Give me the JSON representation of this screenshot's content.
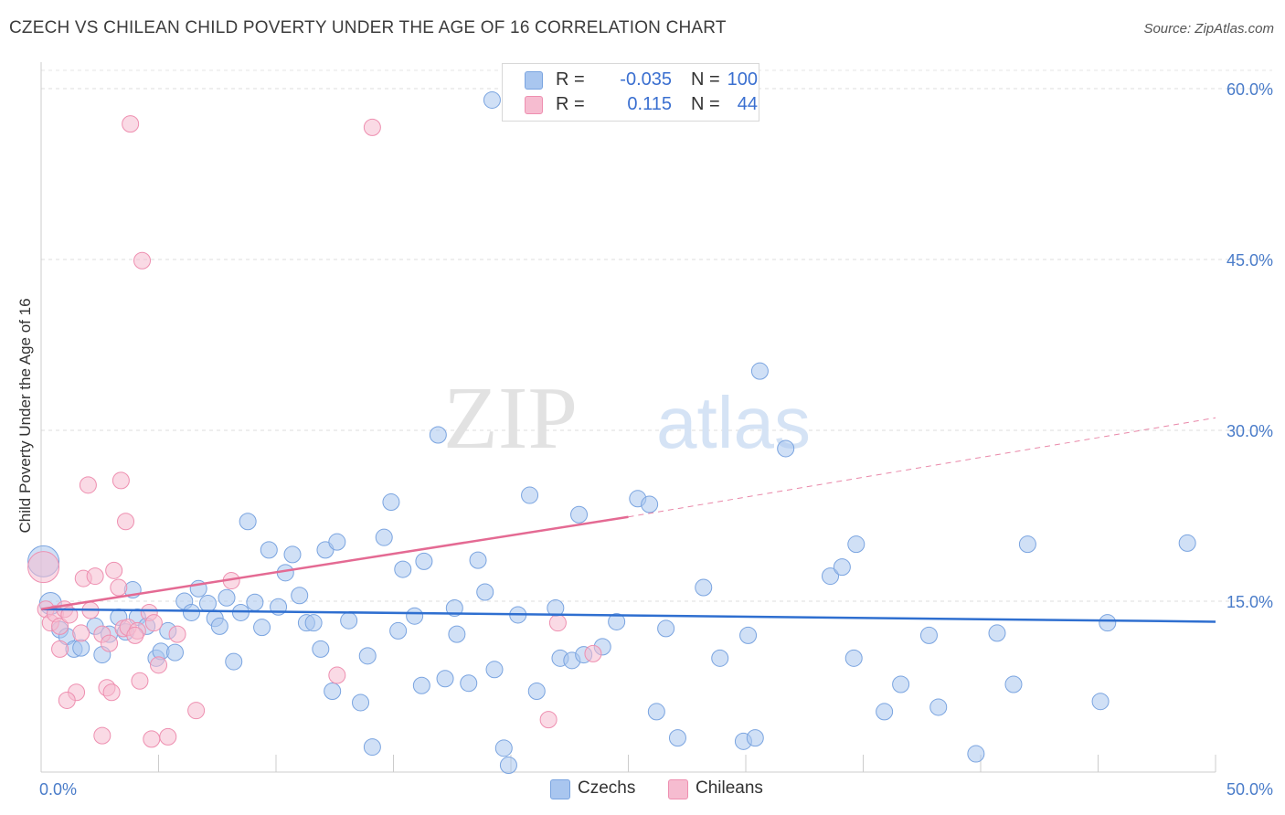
{
  "title": "CZECH VS CHILEAN CHILD POVERTY UNDER THE AGE OF 16 CORRELATION CHART",
  "source": "Source: ZipAtlas.com",
  "watermark": {
    "part1": "ZIP",
    "part2": "atlas"
  },
  "legend": {
    "rows": [
      {
        "r_label": "R =",
        "r_value": "-0.035",
        "n_label": "N =",
        "n_value": "100",
        "color": "#a9c6ef",
        "stroke": "#7aa4e0"
      },
      {
        "r_label": "R =",
        "r_value": "0.115",
        "n_label": "N =",
        "n_value": "44",
        "color": "#f6bcd0",
        "stroke": "#ee8fb0"
      }
    ]
  },
  "bottom_legend": [
    {
      "label": "Czechs",
      "color": "#a9c6ef",
      "stroke": "#7aa4e0"
    },
    {
      "label": "Chileans",
      "color": "#f6bcd0",
      "stroke": "#ee8fb0"
    }
  ],
  "chart_data": {
    "type": "scatter",
    "title": "CZECH VS CHILEAN CHILD POVERTY UNDER THE AGE OF 16 CORRELATION CHART",
    "xlabel": "",
    "ylabel": "Child Poverty Under the Age of 16",
    "xlim": [
      0,
      50
    ],
    "ylim": [
      0,
      60
    ],
    "x_tick_labels": [
      {
        "value": 0,
        "label": "0.0%"
      },
      {
        "value": 50,
        "label": "50.0%"
      }
    ],
    "y_tick_labels": [
      {
        "value": 15,
        "label": "15.0%"
      },
      {
        "value": 30,
        "label": "30.0%"
      },
      {
        "value": 45,
        "label": "45.0%"
      },
      {
        "value": 60,
        "label": "60.0%"
      }
    ],
    "grid": true,
    "legend_position": "top-center",
    "series": [
      {
        "name": "Czechs",
        "color": "#a9c6ef",
        "stroke": "#7aa4e0",
        "trend": {
          "x0": 0,
          "y0": 14.3,
          "x1": 50,
          "y1": 13.2,
          "color": "#2f6fd0"
        },
        "points": [
          [
            0.1,
            18.5
          ],
          [
            0.4,
            14.8
          ],
          [
            0.8,
            12.5
          ],
          [
            1.1,
            11.9
          ],
          [
            1.4,
            10.8
          ],
          [
            1.7,
            10.9
          ],
          [
            2.3,
            12.8
          ],
          [
            2.6,
            10.3
          ],
          [
            2.9,
            12.1
          ],
          [
            3.3,
            13.6
          ],
          [
            3.6,
            12.3
          ],
          [
            3.9,
            16.0
          ],
          [
            4.1,
            13.6
          ],
          [
            4.5,
            12.8
          ],
          [
            4.9,
            10.0
          ],
          [
            5.1,
            10.6
          ],
          [
            5.4,
            12.4
          ],
          [
            5.7,
            10.5
          ],
          [
            6.1,
            15.0
          ],
          [
            6.4,
            14.0
          ],
          [
            6.7,
            16.1
          ],
          [
            7.1,
            14.8
          ],
          [
            7.4,
            13.5
          ],
          [
            7.6,
            12.8
          ],
          [
            7.9,
            15.3
          ],
          [
            8.2,
            9.7
          ],
          [
            8.5,
            14.0
          ],
          [
            8.8,
            22.0
          ],
          [
            9.1,
            14.9
          ],
          [
            9.4,
            12.7
          ],
          [
            9.7,
            19.5
          ],
          [
            10.1,
            14.5
          ],
          [
            10.4,
            17.5
          ],
          [
            10.7,
            19.1
          ],
          [
            11.0,
            15.5
          ],
          [
            11.3,
            13.1
          ],
          [
            11.6,
            13.1
          ],
          [
            11.9,
            10.8
          ],
          [
            12.1,
            19.5
          ],
          [
            12.4,
            7.1
          ],
          [
            12.6,
            20.2
          ],
          [
            13.1,
            13.3
          ],
          [
            13.6,
            6.1
          ],
          [
            13.9,
            10.2
          ],
          [
            14.1,
            2.2
          ],
          [
            14.6,
            20.6
          ],
          [
            14.9,
            23.7
          ],
          [
            15.2,
            12.4
          ],
          [
            15.4,
            17.8
          ],
          [
            15.9,
            13.7
          ],
          [
            16.2,
            7.6
          ],
          [
            16.3,
            18.5
          ],
          [
            16.9,
            29.6
          ],
          [
            17.2,
            8.2
          ],
          [
            17.6,
            14.4
          ],
          [
            17.7,
            12.1
          ],
          [
            18.2,
            7.8
          ],
          [
            18.6,
            18.6
          ],
          [
            18.9,
            15.8
          ],
          [
            19.3,
            9.0
          ],
          [
            19.2,
            59.0
          ],
          [
            19.7,
            2.1
          ],
          [
            19.9,
            0.6
          ],
          [
            20.3,
            13.8
          ],
          [
            20.8,
            24.3
          ],
          [
            21.1,
            7.1
          ],
          [
            21.9,
            14.4
          ],
          [
            22.1,
            10.0
          ],
          [
            22.6,
            9.8
          ],
          [
            22.9,
            22.6
          ],
          [
            23.1,
            10.3
          ],
          [
            23.9,
            11.0
          ],
          [
            24.5,
            13.2
          ],
          [
            25.4,
            24.0
          ],
          [
            25.9,
            23.5
          ],
          [
            26.2,
            5.3
          ],
          [
            26.6,
            12.6
          ],
          [
            27.1,
            3.0
          ],
          [
            28.2,
            16.2
          ],
          [
            28.9,
            10.0
          ],
          [
            29.9,
            2.7
          ],
          [
            30.4,
            3.0
          ],
          [
            30.1,
            12.0
          ],
          [
            30.6,
            35.2
          ],
          [
            31.7,
            28.4
          ],
          [
            33.6,
            17.2
          ],
          [
            34.1,
            18.0
          ],
          [
            34.6,
            10.0
          ],
          [
            34.7,
            20.0
          ],
          [
            35.9,
            5.3
          ],
          [
            36.6,
            7.7
          ],
          [
            37.8,
            12.0
          ],
          [
            38.2,
            5.7
          ],
          [
            39.8,
            1.6
          ],
          [
            40.7,
            12.2
          ],
          [
            41.4,
            7.7
          ],
          [
            42.0,
            20.0
          ],
          [
            45.1,
            6.2
          ],
          [
            45.4,
            13.1
          ],
          [
            48.8,
            20.1
          ]
        ]
      },
      {
        "name": "Chileans",
        "color": "#f6bcd0",
        "stroke": "#ee8fb0",
        "trend": {
          "x0": 0,
          "y0": 14.3,
          "x1": 25,
          "y1": 22.4,
          "dash_x1": 50,
          "dash_y1": 31.1,
          "color": "#e46a93"
        },
        "points": [
          [
            0.1,
            18.0
          ],
          [
            0.2,
            14.3
          ],
          [
            0.4,
            13.1
          ],
          [
            0.6,
            13.9
          ],
          [
            0.8,
            12.8
          ],
          [
            0.8,
            10.8
          ],
          [
            1.0,
            14.3
          ],
          [
            1.2,
            13.8
          ],
          [
            1.5,
            7.0
          ],
          [
            1.7,
            12.2
          ],
          [
            1.8,
            17.0
          ],
          [
            2.0,
            25.2
          ],
          [
            2.1,
            14.2
          ],
          [
            2.3,
            17.2
          ],
          [
            2.6,
            12.1
          ],
          [
            2.8,
            7.4
          ],
          [
            2.9,
            11.3
          ],
          [
            3.0,
            7.0
          ],
          [
            3.1,
            17.7
          ],
          [
            3.3,
            16.2
          ],
          [
            3.4,
            25.6
          ],
          [
            3.5,
            12.6
          ],
          [
            3.6,
            22.0
          ],
          [
            3.7,
            12.7
          ],
          [
            3.8,
            56.9
          ],
          [
            4.1,
            12.4
          ],
          [
            4.2,
            8.0
          ],
          [
            4.3,
            44.9
          ],
          [
            4.6,
            14.0
          ],
          [
            4.7,
            2.9
          ],
          [
            4.8,
            13.1
          ],
          [
            5.4,
            3.1
          ],
          [
            5.8,
            12.1
          ],
          [
            6.6,
            5.4
          ],
          [
            8.1,
            16.8
          ],
          [
            12.6,
            8.5
          ],
          [
            14.1,
            56.6
          ],
          [
            21.6,
            4.6
          ],
          [
            22.0,
            13.1
          ],
          [
            23.5,
            10.4
          ],
          [
            2.6,
            3.2
          ],
          [
            1.1,
            6.3
          ],
          [
            4.0,
            12.0
          ],
          [
            5.0,
            9.4
          ]
        ]
      }
    ]
  }
}
